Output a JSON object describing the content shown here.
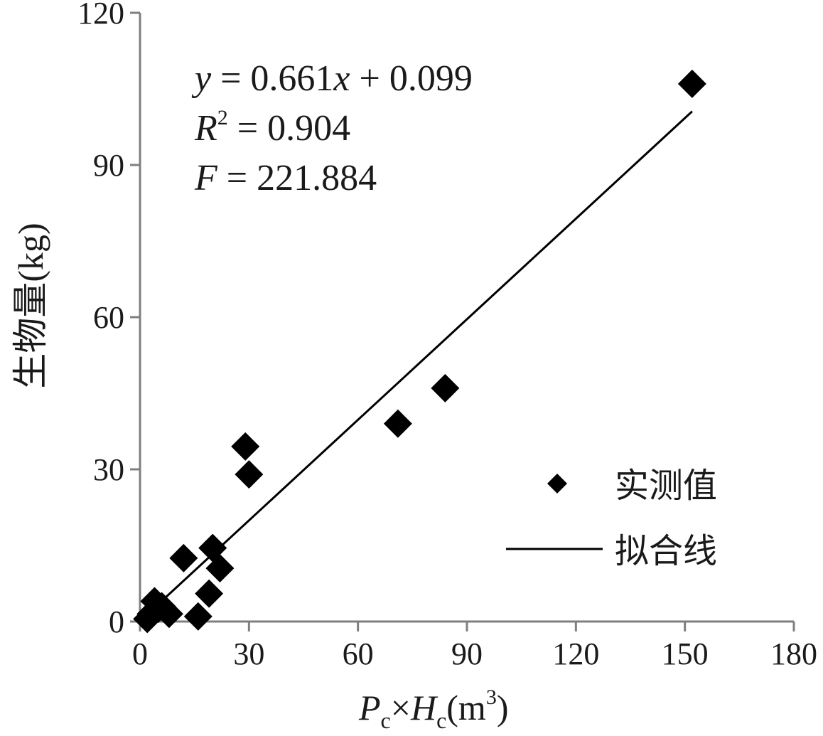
{
  "chart_data": {
    "type": "scatter",
    "title": "",
    "xlabel": {
      "p": "P",
      "p_sub": "c",
      "times": "×",
      "h": "H",
      "h_sub": "c",
      "unit_open": "(m",
      "unit_sup": "3",
      "unit_close": ")"
    },
    "ylabel": "生物量(kg)",
    "xlim": [
      0,
      180
    ],
    "ylim": [
      0,
      120
    ],
    "xticks": [
      "0",
      "30",
      "60",
      "90",
      "120",
      "150",
      "180"
    ],
    "yticks": [
      "0",
      "30",
      "60",
      "90",
      "120"
    ],
    "grid": false,
    "legend_position": "bottom-right",
    "series": [
      {
        "name": "实测值",
        "kind": "points",
        "marker": "diamond",
        "color": "#000000",
        "points": [
          [
            2,
            0.5
          ],
          [
            3,
            1.5
          ],
          [
            4,
            4
          ],
          [
            5,
            2.5
          ],
          [
            6,
            3
          ],
          [
            8,
            1.5
          ],
          [
            12,
            12.5
          ],
          [
            16,
            1
          ],
          [
            19,
            5.5
          ],
          [
            20,
            14.5
          ],
          [
            22,
            10.5
          ],
          [
            29,
            34.5
          ],
          [
            30,
            29
          ],
          [
            71,
            39
          ],
          [
            84,
            46
          ],
          [
            152,
            106
          ]
        ]
      },
      {
        "name": "拟合线",
        "kind": "line",
        "color": "#000000",
        "x_range": [
          3,
          152
        ],
        "slope": 0.661,
        "intercept": 0.099
      }
    ],
    "annotation": {
      "line1_y": "y",
      "line1_rest": " = 0.661",
      "line1_x": "x",
      "line1_tail": " + 0.099",
      "line2_r": "R",
      "line2_sup": "2",
      "line2_rest": " = 0.904",
      "line3_f": "F",
      "line3_rest": " = 221.884"
    }
  }
}
